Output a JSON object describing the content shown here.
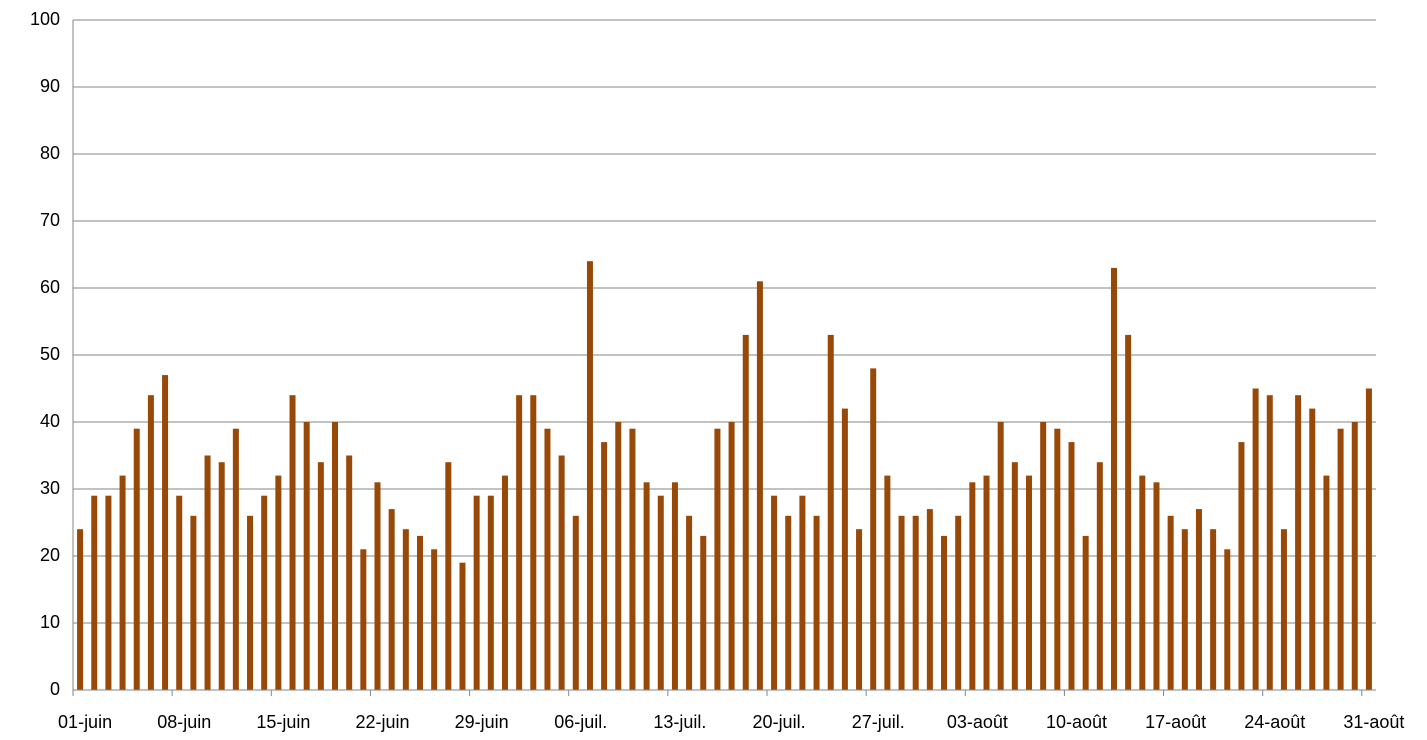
{
  "chart_data": {
    "type": "bar",
    "categories": [
      "01-juin",
      null,
      null,
      null,
      null,
      null,
      null,
      "08-juin",
      null,
      null,
      null,
      null,
      null,
      null,
      "15-juin",
      null,
      null,
      null,
      null,
      null,
      null,
      "22-juin",
      null,
      null,
      null,
      null,
      null,
      null,
      "29-juin",
      null,
      null,
      null,
      null,
      null,
      null,
      "06-juil.",
      null,
      null,
      null,
      null,
      null,
      null,
      "13-juil.",
      null,
      null,
      null,
      null,
      null,
      null,
      "20-juil.",
      null,
      null,
      null,
      null,
      null,
      null,
      "27-juil.",
      null,
      null,
      null,
      null,
      null,
      null,
      "03-août",
      null,
      null,
      null,
      null,
      null,
      null,
      "10-août",
      null,
      null,
      null,
      null,
      null,
      null,
      "17-août",
      null,
      null,
      null,
      null,
      null,
      null,
      "24-août",
      null,
      null,
      null,
      null,
      null,
      null,
      "31-août"
    ],
    "values": [
      24,
      29,
      29,
      32,
      39,
      44,
      47,
      29,
      26,
      35,
      34,
      39,
      26,
      29,
      32,
      44,
      40,
      34,
      40,
      35,
      21,
      31,
      27,
      24,
      23,
      21,
      34,
      19,
      29,
      29,
      32,
      44,
      44,
      39,
      35,
      26,
      64,
      37,
      40,
      39,
      31,
      29,
      31,
      26,
      23,
      39,
      40,
      53,
      61,
      29,
      26,
      29,
      26,
      53,
      42,
      24,
      48,
      32,
      26,
      26,
      27,
      23,
      26,
      31,
      32,
      40,
      34,
      32,
      40,
      39,
      37,
      23,
      34,
      63,
      53,
      32,
      31,
      26,
      24,
      27,
      24,
      21,
      37,
      45,
      44,
      24,
      44,
      42,
      32,
      39,
      40,
      45
    ],
    "color": "#984807",
    "ylim": [
      0,
      100
    ],
    "yticks": [
      0,
      10,
      20,
      30,
      40,
      50,
      60,
      70,
      80,
      90,
      100
    ],
    "grid": true
  }
}
